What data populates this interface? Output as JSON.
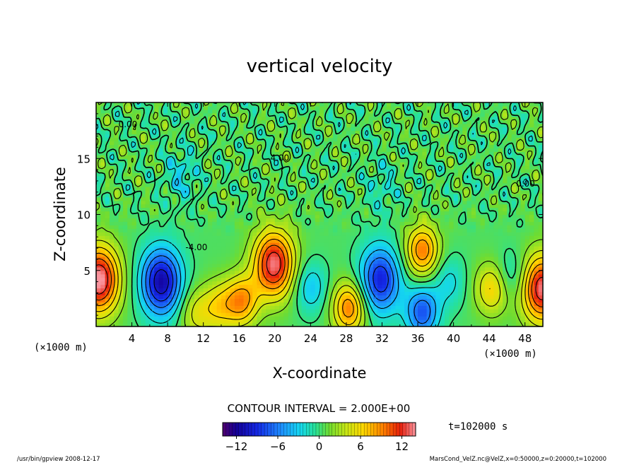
{
  "chart_data": {
    "type": "heatmap",
    "title": "vertical velocity",
    "xlabel": "X-coordinate",
    "ylabel": "Z-coordinate",
    "x_unit": "(×1000 m)",
    "y_unit": "(×1000 m)",
    "xlim": [
      0,
      50
    ],
    "ylim": [
      0,
      20
    ],
    "x_ticks": [
      "4",
      "8",
      "12",
      "16",
      "20",
      "24",
      "28",
      "32",
      "36",
      "40",
      "44",
      "48"
    ],
    "y_ticks": [
      "5",
      "10",
      "15"
    ],
    "contour_interval_text": "CONTOUR INTERVAL = 2.000E+00",
    "time_label": "t=102000 s",
    "colorbar": {
      "min": -14,
      "max": 14,
      "ticks": [
        "−12",
        "−6",
        "0",
        "6",
        "12"
      ]
    },
    "contour_labels": [
      "0.00",
      "4.00",
      "-4.00",
      "0.00"
    ],
    "blobs": [
      {
        "x": 0.3,
        "z": 4.2,
        "amp": 14
      },
      {
        "x": 7.3,
        "z": 4.0,
        "amp": -12
      },
      {
        "x": 9.5,
        "z": 13.5,
        "amp": -3
      },
      {
        "x": 11.2,
        "z": 1.2,
        "amp": 4
      },
      {
        "x": 13.8,
        "z": 1.8,
        "amp": 5
      },
      {
        "x": 16.3,
        "z": 2.3,
        "amp": 8
      },
      {
        "x": 19.9,
        "z": 5.6,
        "amp": 13
      },
      {
        "x": 24.0,
        "z": 3.5,
        "amp": -4
      },
      {
        "x": 28.3,
        "z": 1.7,
        "amp": 9
      },
      {
        "x": 31.8,
        "z": 4.2,
        "amp": -10
      },
      {
        "x": 36.5,
        "z": 6.8,
        "amp": 9
      },
      {
        "x": 36.5,
        "z": 1.3,
        "amp": -8
      },
      {
        "x": 39.5,
        "z": 4.0,
        "amp": -3
      },
      {
        "x": 44.3,
        "z": 3.4,
        "amp": 6
      },
      {
        "x": 46.5,
        "z": 4.5,
        "amp": -3
      },
      {
        "x": 49.9,
        "z": 3.4,
        "amp": 13
      },
      {
        "x": 32.0,
        "z": 12.5,
        "amp": -2
      }
    ]
  },
  "footer": {
    "left": "/usr/bin/gpview   2008-12-17",
    "right": "MarsCond_VelZ.nc@VelZ,x=0:50000,z=0:20000,t=102000"
  }
}
